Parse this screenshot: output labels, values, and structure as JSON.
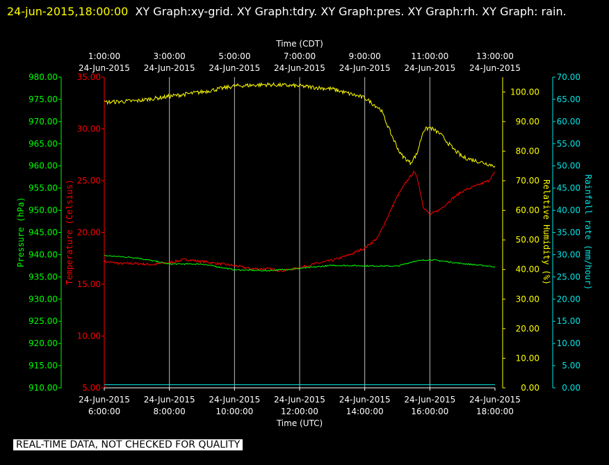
{
  "header": {
    "stamp": "24-jun-2015,18:00:00",
    "title": "XY Graph:xy-grid.  XY Graph:tdry.  XY Graph:pres.  XY Graph:rh.  XY Graph: rain."
  },
  "footer": {
    "notice": "REAL-TIME DATA, NOT CHECKED FOR QUALITY"
  },
  "colors": {
    "pressure": "#00ff00",
    "temperature": "#ff0000",
    "humidity": "#ffff00",
    "rain": "#00e5e5",
    "grid": "#c0c0c0",
    "background": "#000000",
    "text": "#ffffff"
  },
  "chart_data": {
    "type": "line",
    "grid": true,
    "x_bottom": {
      "label": "Time (UTC)",
      "range": [
        "2015-06-24T06:00:00",
        "2015-06-24T18:00:00"
      ],
      "ticks": [
        {
          "date": "24-Jun-2015",
          "time": "6:00:00",
          "hour": 6
        },
        {
          "date": "24-Jun-2015",
          "time": "8:00:00",
          "hour": 8
        },
        {
          "date": "24-Jun-2015",
          "time": "10:00:00",
          "hour": 10
        },
        {
          "date": "24-Jun-2015",
          "time": "12:00:00",
          "hour": 12
        },
        {
          "date": "24-Jun-2015",
          "time": "14:00:00",
          "hour": 14
        },
        {
          "date": "24-Jun-2015",
          "time": "16:00:00",
          "hour": 16
        },
        {
          "date": "24-Jun-2015",
          "time": "18:00:00",
          "hour": 18
        }
      ]
    },
    "x_top": {
      "label": "Time (CDT)",
      "ticks": [
        {
          "time": "1:00:00",
          "date": "24-Jun-2015"
        },
        {
          "time": "3:00:00",
          "date": "24-Jun-2015"
        },
        {
          "time": "5:00:00",
          "date": "24-Jun-2015"
        },
        {
          "time": "7:00:00",
          "date": "24-Jun-2015"
        },
        {
          "time": "9:00:00",
          "date": "24-Jun-2015"
        },
        {
          "time": "11:00:00",
          "date": "24-Jun-2015"
        },
        {
          "time": "13:00:00",
          "date": "24-Jun-2015"
        }
      ]
    },
    "y_axes": {
      "pressure": {
        "label": "Pressure (hPa)",
        "range": [
          910,
          980
        ],
        "ticks": [
          "910.00",
          "915.00",
          "920.00",
          "925.00",
          "930.00",
          "935.00",
          "940.00",
          "945.00",
          "950.00",
          "955.00",
          "960.00",
          "965.00",
          "970.00",
          "975.00",
          "980.00"
        ]
      },
      "temperature": {
        "label": "Temperature (Celsius)",
        "range": [
          5,
          35
        ],
        "ticks": [
          "5.00",
          "10.00",
          "15.00",
          "20.00",
          "25.00",
          "30.00",
          "35.00"
        ]
      },
      "humidity": {
        "label": "Relative Humidity (%)",
        "range": [
          0,
          105
        ],
        "ticks": [
          "0.00",
          "10.00",
          "20.00",
          "30.00",
          "40.00",
          "50.00",
          "60.00",
          "70.00",
          "80.00",
          "90.00",
          "100.00"
        ]
      },
      "rain": {
        "label": "Rainfall rate (mm/hour)",
        "range": [
          0,
          70
        ],
        "ticks": [
          "0.00",
          "5.00",
          "10.00",
          "15.00",
          "20.00",
          "25.00",
          "30.00",
          "35.00",
          "40.00",
          "45.00",
          "50.00",
          "55.00",
          "60.00",
          "65.00",
          "70.00"
        ]
      }
    },
    "series": [
      {
        "name": "tdry",
        "axis": "temperature",
        "points": [
          [
            6,
            17.2
          ],
          [
            6.5,
            17.0
          ],
          [
            7,
            17.0
          ],
          [
            7.5,
            16.9
          ],
          [
            8,
            17.1
          ],
          [
            8.5,
            17.4
          ],
          [
            9,
            17.2
          ],
          [
            9.5,
            17.0
          ],
          [
            10,
            16.8
          ],
          [
            10.5,
            16.5
          ],
          [
            11,
            16.5
          ],
          [
            11.5,
            16.3
          ],
          [
            12,
            16.6
          ],
          [
            12.5,
            17.0
          ],
          [
            13,
            17.3
          ],
          [
            13.5,
            17.8
          ],
          [
            14,
            18.5
          ],
          [
            14.4,
            19.5
          ],
          [
            14.7,
            21.5
          ],
          [
            15,
            23.5
          ],
          [
            15.3,
            25.0
          ],
          [
            15.5,
            25.8
          ],
          [
            15.6,
            25.5
          ],
          [
            15.8,
            22.5
          ],
          [
            16,
            21.7
          ],
          [
            16.3,
            22.2
          ],
          [
            16.7,
            23.3
          ],
          [
            17,
            24.0
          ],
          [
            17.5,
            24.6
          ],
          [
            17.8,
            25.0
          ],
          [
            18,
            25.8
          ]
        ]
      },
      {
        "name": "pres",
        "axis": "pressure",
        "points": [
          [
            6,
            939.8
          ],
          [
            7,
            939.3
          ],
          [
            8,
            937.9
          ],
          [
            9,
            937.9
          ],
          [
            10,
            936.6
          ],
          [
            11,
            936.4
          ],
          [
            12,
            936.9
          ],
          [
            13,
            937.6
          ],
          [
            14,
            937.5
          ],
          [
            15,
            937.4
          ],
          [
            15.5,
            938.5
          ],
          [
            16,
            938.9
          ],
          [
            17,
            938.0
          ],
          [
            18,
            937.3
          ]
        ]
      },
      {
        "name": "rh",
        "axis": "humidity",
        "points": [
          [
            6,
            96.5
          ],
          [
            7,
            97.0
          ],
          [
            8,
            98.5
          ],
          [
            9,
            100.0
          ],
          [
            10,
            102.0
          ],
          [
            11,
            102.5
          ],
          [
            12,
            102.0
          ],
          [
            13,
            101.0
          ],
          [
            14,
            98.0
          ],
          [
            14.5,
            94.0
          ],
          [
            14.8,
            86.0
          ],
          [
            15.1,
            79.0
          ],
          [
            15.4,
            76.0
          ],
          [
            15.6,
            79.0
          ],
          [
            15.8,
            87.0
          ],
          [
            16,
            88.0
          ],
          [
            16.3,
            86.0
          ],
          [
            16.7,
            81.0
          ],
          [
            17,
            78.0
          ],
          [
            17.5,
            76.5
          ],
          [
            18,
            75.0
          ]
        ]
      },
      {
        "name": "rain",
        "axis": "rain",
        "points": [
          [
            6,
            0.7
          ],
          [
            18,
            0.7
          ]
        ]
      }
    ]
  }
}
